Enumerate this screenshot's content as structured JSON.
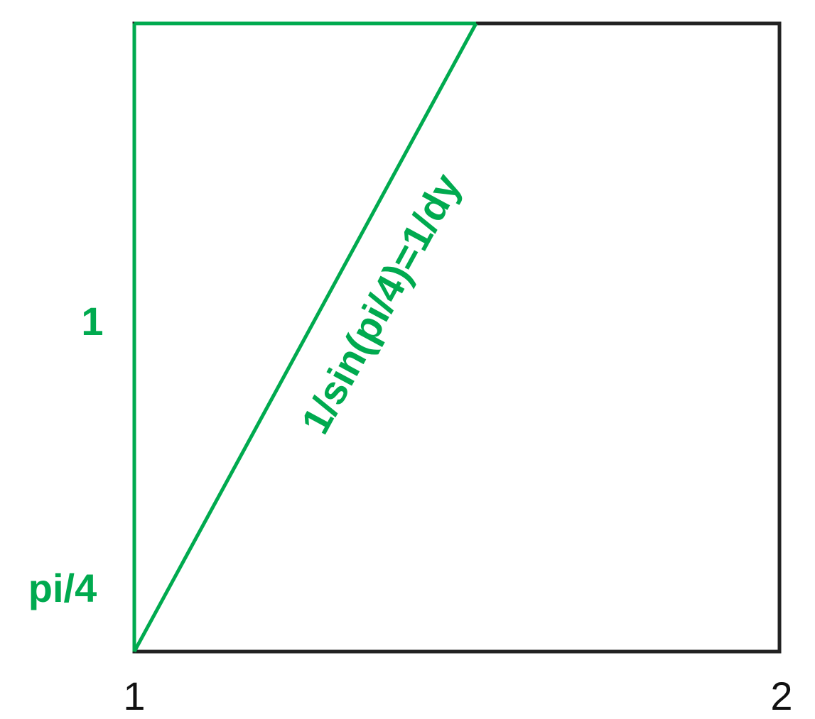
{
  "colors": {
    "accent": "#00aa4f",
    "frame": "#222222"
  },
  "labels": {
    "side": "1",
    "angle": "pi/4",
    "hypotenuse": "1/sin(pi/4)=1/dy",
    "x_left": "1",
    "x_right": "2"
  }
}
